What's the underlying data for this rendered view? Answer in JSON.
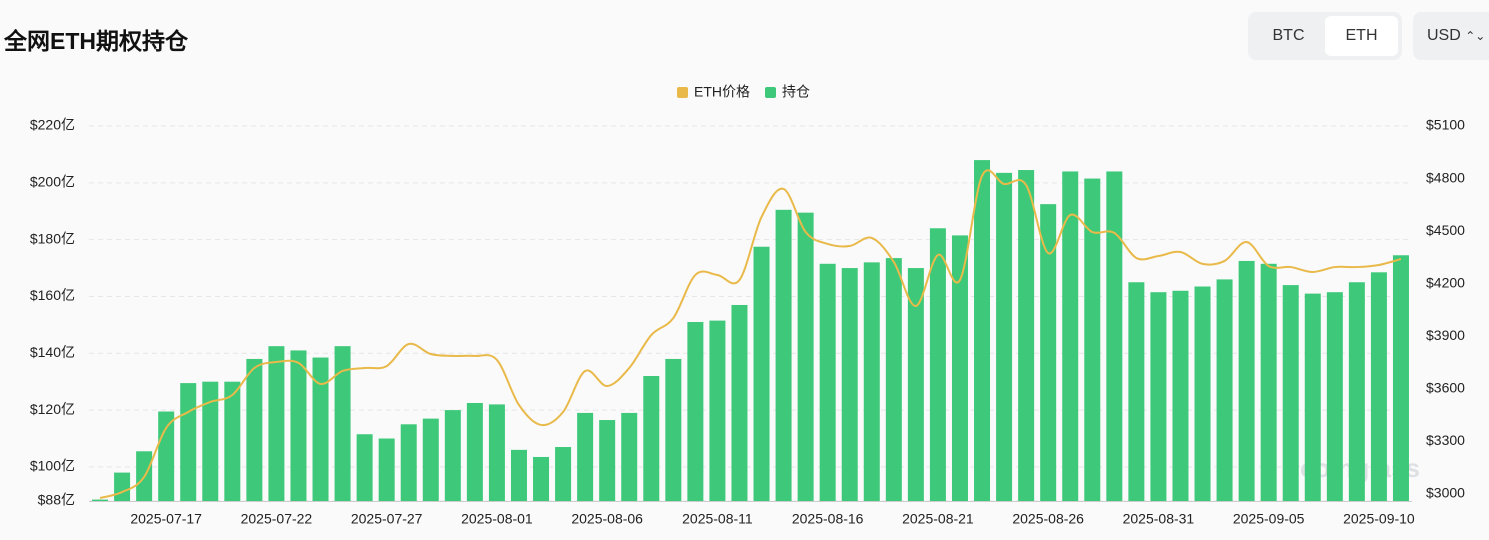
{
  "header": {
    "title": "全网ETH期权持仓",
    "coins": [
      "BTC",
      "ETH"
    ],
    "selected": "ETH",
    "currency": "USD"
  },
  "chart_data": {
    "type": "bar-line",
    "watermark": "coinglass",
    "categories": [
      null,
      null,
      null,
      "2025-07-17",
      null,
      null,
      null,
      null,
      "2025-07-22",
      null,
      null,
      null,
      null,
      "2025-07-27",
      null,
      null,
      null,
      null,
      "2025-08-01",
      null,
      null,
      null,
      null,
      "2025-08-06",
      null,
      null,
      null,
      null,
      "2025-08-11",
      null,
      null,
      null,
      null,
      "2025-08-16",
      null,
      null,
      null,
      null,
      "2025-08-21",
      null,
      null,
      null,
      null,
      "2025-08-26",
      null,
      null,
      null,
      null,
      "2025-08-31",
      null,
      null,
      null,
      null,
      "2025-09-05",
      null,
      null,
      null,
      null,
      "2025-09-10",
      null
    ],
    "series": [
      {
        "name": "ETH价格",
        "color": "#e9b949",
        "kind": "line",
        "axis": "y2",
        "values": [
          2977,
          3011,
          3097,
          3377,
          3468,
          3525,
          3565,
          3719,
          3753,
          3748,
          3628,
          3702,
          3719,
          3730,
          3856,
          3799,
          3788,
          3788,
          3765,
          3508,
          3394,
          3468,
          3702,
          3616,
          3719,
          3907,
          4004,
          4250,
          4250,
          4221,
          4581,
          4741,
          4495,
          4427,
          4415,
          4461,
          4324,
          4073,
          4364,
          4221,
          4815,
          4769,
          4763,
          4375,
          4592,
          4495,
          4490,
          4347,
          4358,
          4381,
          4313,
          4330,
          4438,
          4301,
          4295,
          4267,
          4295,
          4295,
          4307,
          4341
        ]
      },
      {
        "name": "持仓",
        "color": "#3ec97a",
        "kind": "bar",
        "values": [
          88.5,
          98,
          105.5,
          119.5,
          129.5,
          130,
          130,
          138,
          142.5,
          141,
          138.5,
          142.5,
          111.5,
          110,
          115,
          117,
          120,
          122.5,
          122,
          106,
          103.5,
          107,
          119,
          116.5,
          119,
          132,
          138,
          151,
          151.5,
          157,
          177.5,
          190.5,
          189.5,
          171.5,
          170,
          172,
          173.5,
          170,
          184,
          181.5,
          208,
          203.5,
          204.5,
          192.5,
          204,
          201.5,
          204,
          165,
          161.5,
          162,
          163.5,
          166,
          172.5,
          171.5,
          164,
          161,
          161.5,
          165,
          168.5,
          174.5
        ]
      }
    ],
    "ylim": [
      88,
      220
    ],
    "yticks": [
      {
        "value": 88,
        "label": "$88亿"
      },
      {
        "value": 100,
        "label": "$100亿"
      },
      {
        "value": 120,
        "label": "$120亿"
      },
      {
        "value": 140,
        "label": "$140亿"
      },
      {
        "value": 160,
        "label": "$160亿"
      },
      {
        "value": 180,
        "label": "$180亿"
      },
      {
        "value": 200,
        "label": "$200亿"
      },
      {
        "value": 220,
        "label": "$220亿"
      }
    ],
    "y2lim": [
      2960,
      5100
    ],
    "y2ticks": [
      {
        "value": 3000,
        "label": "$3000"
      },
      {
        "value": 3300,
        "label": "$3300"
      },
      {
        "value": 3600,
        "label": "$3600"
      },
      {
        "value": 3900,
        "label": "$3900"
      },
      {
        "value": 4200,
        "label": "$4200"
      },
      {
        "value": 4500,
        "label": "$4500"
      },
      {
        "value": 4800,
        "label": "$4800"
      },
      {
        "value": 5100,
        "label": "$5100"
      }
    ],
    "grid": true
  }
}
